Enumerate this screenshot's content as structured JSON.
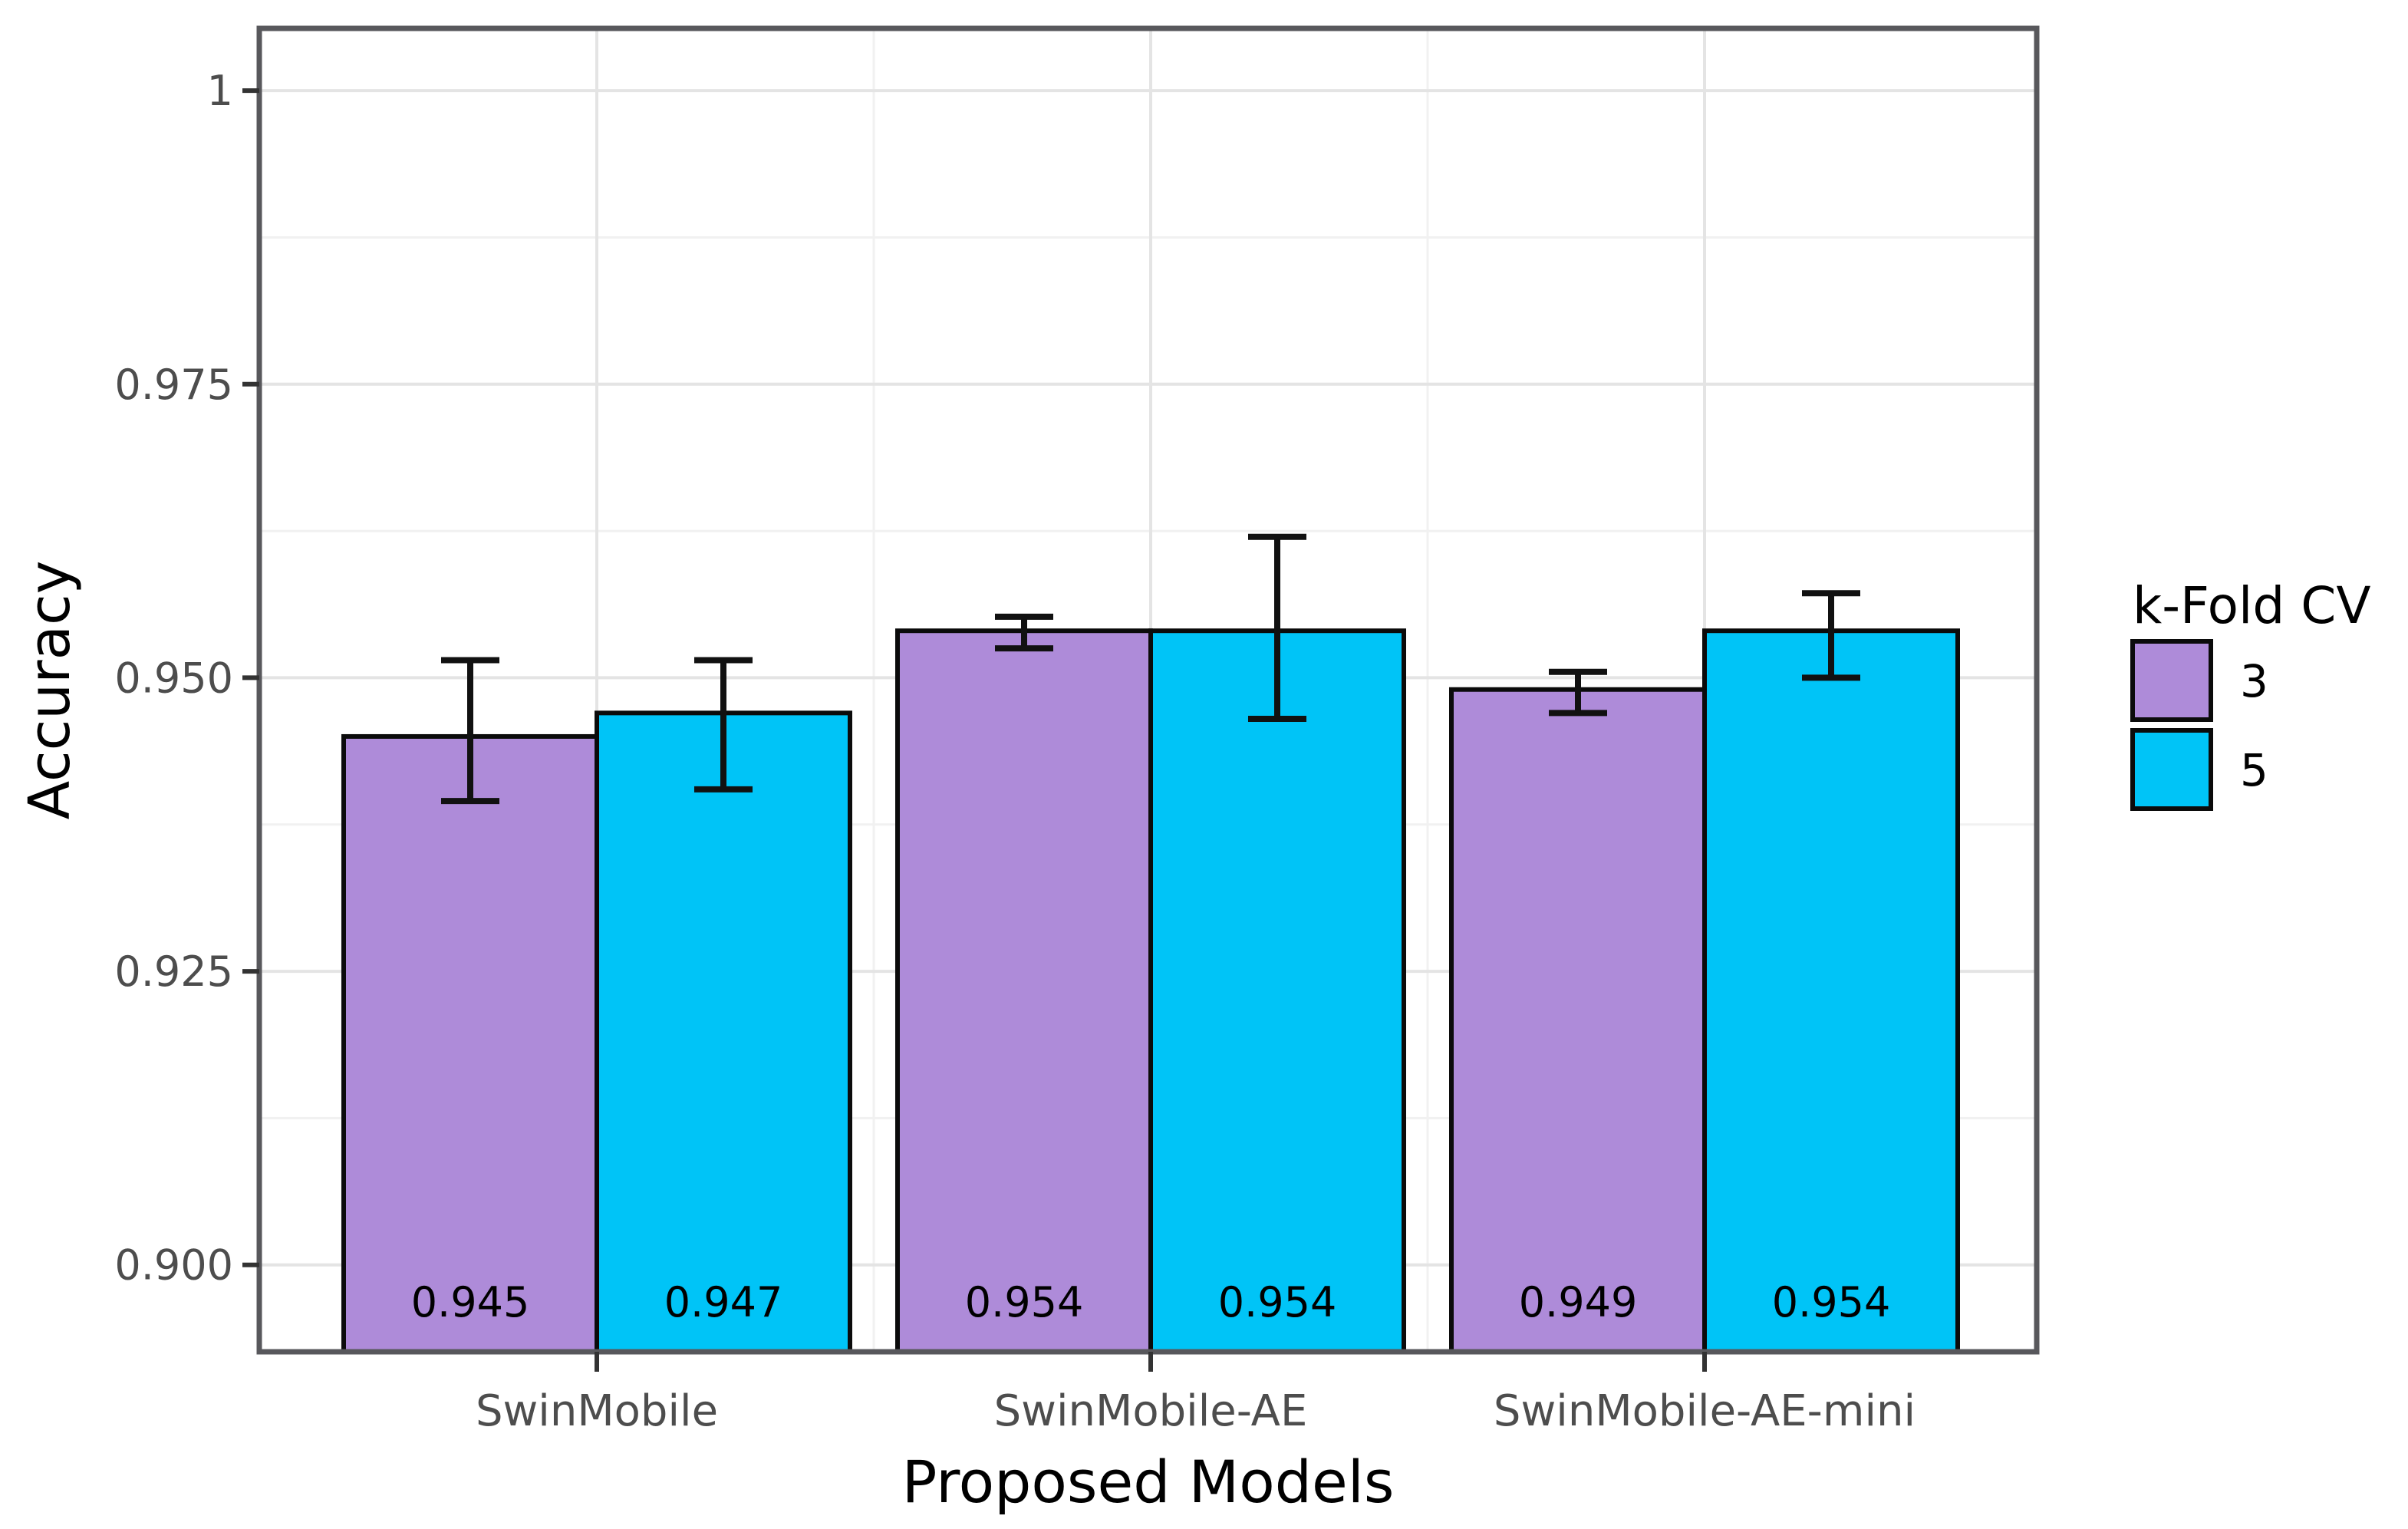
{
  "figure": {
    "background": "#ffffff"
  },
  "chart_data": {
    "type": "bar",
    "title": "",
    "xlabel": "Proposed Models",
    "ylabel": "Accuracy",
    "categories": [
      "SwinMobile",
      "SwinMobile-AE",
      "SwinMobile-AE-mini"
    ],
    "series": [
      {
        "name": "3",
        "color": "#AE8BD9",
        "values": [
          0.945,
          0.954,
          0.949
        ],
        "value_labels": [
          "0.945",
          "0.954",
          "0.949"
        ],
        "error_low": [
          0.9395,
          0.9525,
          0.947
        ],
        "error_high": [
          0.9515,
          0.9552,
          0.9505
        ]
      },
      {
        "name": "5",
        "color": "#00C4F7",
        "values": [
          0.947,
          0.954,
          0.954
        ],
        "value_labels": [
          "0.947",
          "0.954",
          "0.954"
        ],
        "error_low": [
          0.9405,
          0.9465,
          0.95
        ],
        "error_high": [
          0.9515,
          0.962,
          0.9572
        ]
      }
    ],
    "ylim": [
      0.8926,
      1.0053
    ],
    "yticks": {
      "values": [
        0.9,
        0.925,
        0.95,
        0.975,
        1.0
      ],
      "labels": [
        "0.900",
        "0.925",
        "0.950",
        "0.975",
        "1"
      ]
    },
    "yminor": [
      0.9125,
      0.9375,
      0.9625,
      0.9875
    ],
    "grid": "major+minor, horizontal and vertical, on white panel",
    "legend": {
      "title": "k-Fold CV",
      "position": "right",
      "entries": [
        {
          "label": "3",
          "color": "#AE8BD9"
        },
        {
          "label": "5",
          "color": "#00C4F7"
        }
      ]
    },
    "style": {
      "panel_border_color": "#58585C",
      "grid_major_color": "#E4E4E4",
      "grid_minor_color": "#F1F1F1",
      "bar_outline_color": "#0B0B0B",
      "error_bar_color": "#111111",
      "tick_mark_color": "#333333",
      "tick_label_color": "#4D4D4D",
      "axis_title_color": "#000000",
      "value_label_color": "#000000",
      "legend_text_color": "#000000"
    }
  }
}
